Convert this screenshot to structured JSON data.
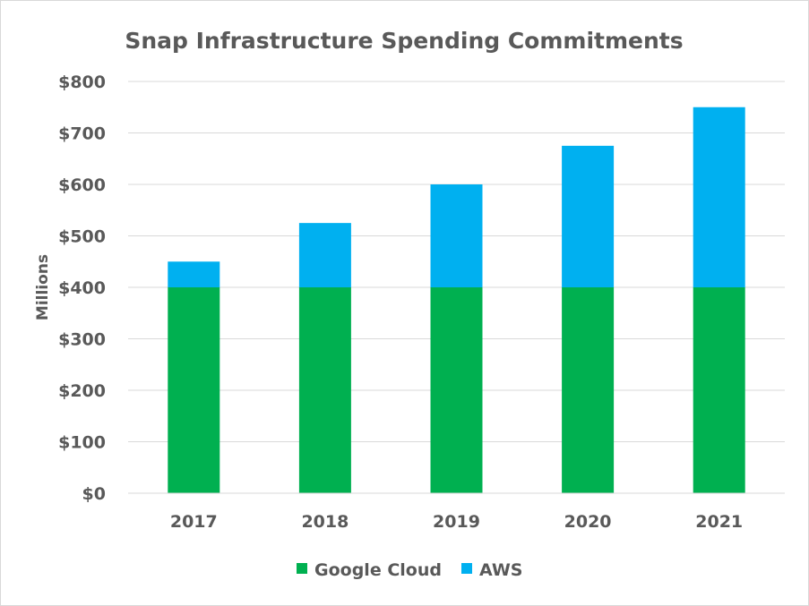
{
  "chart_data": {
    "type": "bar",
    "stacked": true,
    "title": "Snap Infrastructure Spending Commitments",
    "xlabel": "",
    "ylabel": "Millions",
    "categories": [
      "2017",
      "2018",
      "2019",
      "2020",
      "2021"
    ],
    "series": [
      {
        "name": "Google Cloud",
        "values": [
          400,
          400,
          400,
          400,
          400
        ],
        "color": "#00B050"
      },
      {
        "name": "AWS",
        "values": [
          50,
          125,
          200,
          275,
          350
        ],
        "color": "#00B0F0"
      }
    ],
    "ylim": [
      0,
      800
    ],
    "yticks": [
      "$0",
      "$100",
      "$200",
      "$300",
      "$400",
      "$500",
      "$600",
      "$700",
      "$800"
    ],
    "grid": true,
    "legend": "bottom"
  }
}
